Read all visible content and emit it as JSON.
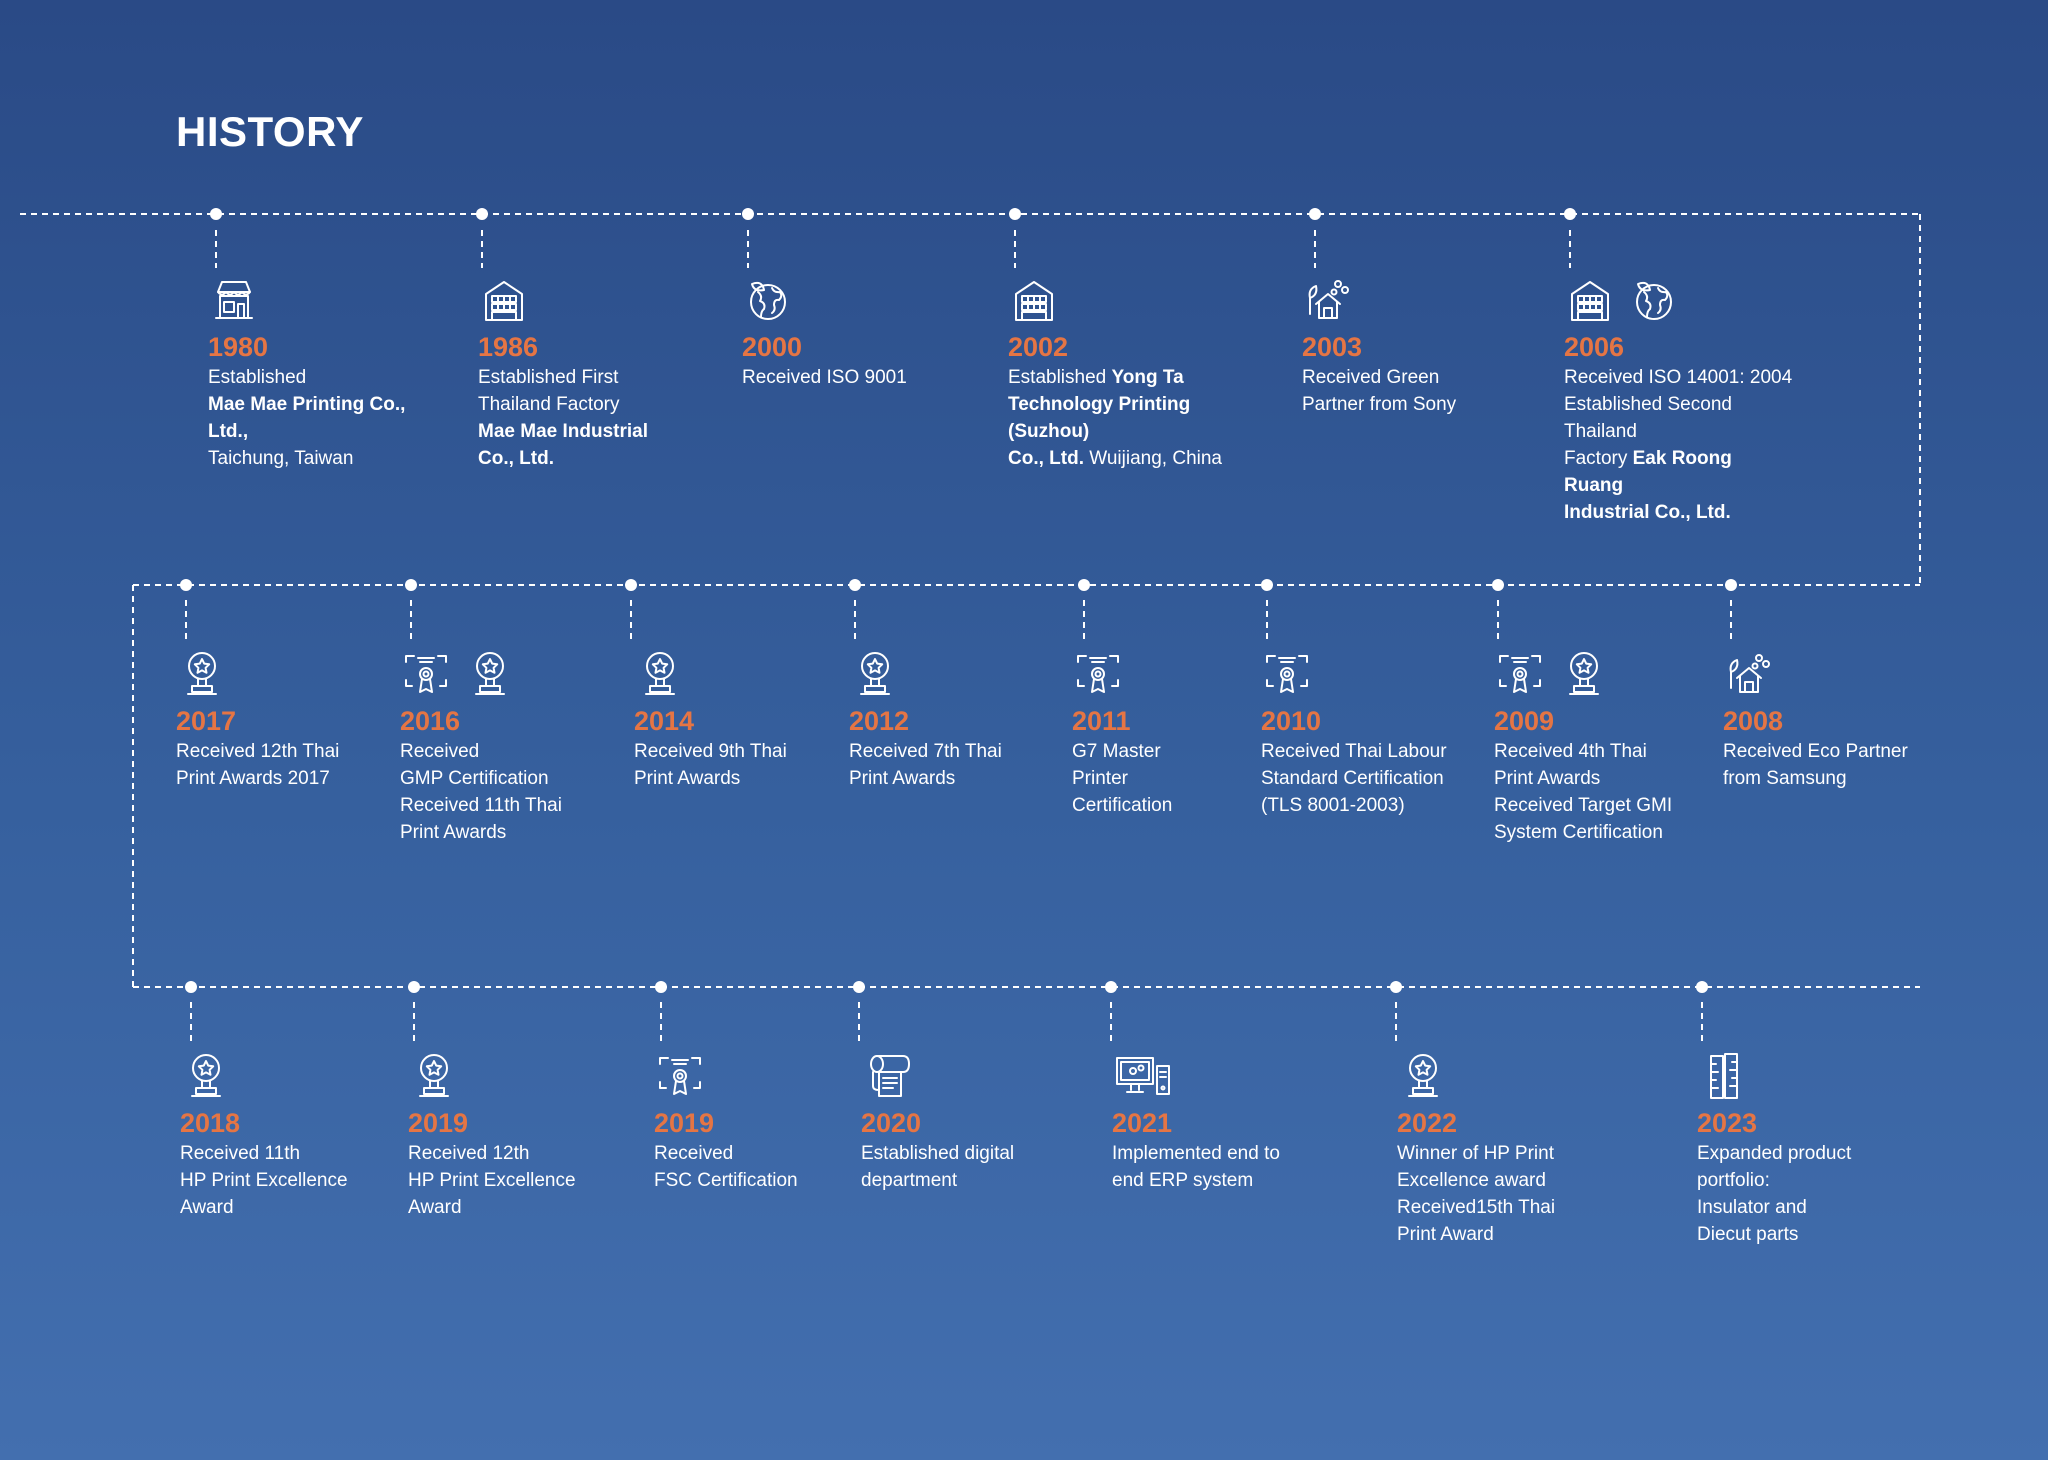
{
  "title": "HISTORY",
  "colors": {
    "year": "#e57544",
    "line": "#ffffff"
  },
  "events": [
    {
      "year": "1980",
      "icons": [
        "store-icon"
      ],
      "lines": [
        [
          {
            "t": "Established"
          }
        ],
        [
          {
            "t": "Mae Mae Printing Co.,",
            "b": true
          }
        ],
        [
          {
            "t": "Ltd.,",
            "b": true
          }
        ],
        [
          {
            "t": "Taichung, Taiwan"
          }
        ]
      ]
    },
    {
      "year": "1986",
      "icons": [
        "factory-icon"
      ],
      "lines": [
        [
          {
            "t": "Established First"
          }
        ],
        [
          {
            "t": "Thailand Factory"
          }
        ],
        [
          {
            "t": "Mae Mae Industrial",
            "b": true
          }
        ],
        [
          {
            "t": "Co., Ltd.",
            "b": true
          }
        ]
      ]
    },
    {
      "year": "2000",
      "icons": [
        "globe-leaf-icon"
      ],
      "lines": [
        [
          {
            "t": "Received ISO 9001"
          }
        ]
      ]
    },
    {
      "year": "2002",
      "icons": [
        "factory-icon"
      ],
      "lines": [
        [
          {
            "t": "Established "
          },
          {
            "t": "Yong Ta",
            "b": true
          }
        ],
        [
          {
            "t": "Technology Printing (Suzhou)",
            "b": true
          }
        ],
        [
          {
            "t": "Co., Ltd.",
            "b": true
          },
          {
            "t": " Wuijiang, China"
          }
        ]
      ]
    },
    {
      "year": "2003",
      "icons": [
        "eco-house-icon"
      ],
      "lines": [
        [
          {
            "t": "Received Green"
          }
        ],
        [
          {
            "t": "Partner from Sony"
          }
        ]
      ]
    },
    {
      "year": "2006",
      "icons": [
        "factory-icon",
        "globe-leaf-icon"
      ],
      "lines": [
        [
          {
            "t": "Received ISO 14001: 2004"
          }
        ],
        [
          {
            "t": "Established Second Thailand"
          }
        ],
        [
          {
            "t": "Factory "
          },
          {
            "t": "Eak Roong Ruang",
            "b": true
          }
        ],
        [
          {
            "t": "Industrial Co., Ltd.",
            "b": true
          }
        ]
      ]
    },
    {
      "year": "2017",
      "icons": [
        "award-trophy-icon"
      ],
      "lines": [
        [
          {
            "t": "Received 12th Thai"
          }
        ],
        [
          {
            "t": "Print Awards 2017"
          }
        ]
      ]
    },
    {
      "year": "2016",
      "icons": [
        "certificate-icon",
        "award-trophy-icon"
      ],
      "lines": [
        [
          {
            "t": "Received"
          }
        ],
        [
          {
            "t": "GMP Certification"
          }
        ],
        [
          {
            "t": "Received 11th Thai"
          }
        ],
        [
          {
            "t": "Print Awards"
          }
        ]
      ]
    },
    {
      "year": "2014",
      "icons": [
        "award-trophy-icon"
      ],
      "lines": [
        [
          {
            "t": "Received 9th Thai"
          }
        ],
        [
          {
            "t": "Print Awards"
          }
        ]
      ]
    },
    {
      "year": "2012",
      "icons": [
        "award-trophy-icon"
      ],
      "lines": [
        [
          {
            "t": "Received 7th Thai"
          }
        ],
        [
          {
            "t": "Print Awards"
          }
        ]
      ]
    },
    {
      "year": "2011",
      "icons": [
        "certificate-icon"
      ],
      "lines": [
        [
          {
            "t": "G7 Master"
          }
        ],
        [
          {
            "t": "Printer"
          }
        ],
        [
          {
            "t": "Certification"
          }
        ]
      ]
    },
    {
      "year": "2010",
      "icons": [
        "certificate-icon"
      ],
      "lines": [
        [
          {
            "t": "Received Thai Labour"
          }
        ],
        [
          {
            "t": "Standard Certification"
          }
        ],
        [
          {
            "t": "(TLS 8001-2003)"
          }
        ]
      ]
    },
    {
      "year": "2009",
      "icons": [
        "certificate-icon",
        "award-trophy-icon"
      ],
      "lines": [
        [
          {
            "t": "Received 4th Thai"
          }
        ],
        [
          {
            "t": "Print Awards"
          }
        ],
        [
          {
            "t": "Received Target GMI"
          }
        ],
        [
          {
            "t": "System Certification"
          }
        ]
      ]
    },
    {
      "year": "2008",
      "icons": [
        "eco-house-icon"
      ],
      "lines": [
        [
          {
            "t": "Received Eco Partner"
          }
        ],
        [
          {
            "t": "from Samsung"
          }
        ]
      ]
    },
    {
      "year": "2018",
      "icons": [
        "award-trophy-icon"
      ],
      "lines": [
        [
          {
            "t": "Received 11th"
          }
        ],
        [
          {
            "t": "HP Print Excellence"
          }
        ],
        [
          {
            "t": "Award"
          }
        ]
      ]
    },
    {
      "year": "2019",
      "icons": [
        "award-trophy-icon"
      ],
      "lines": [
        [
          {
            "t": "Received 12th"
          }
        ],
        [
          {
            "t": "HP Print Excellence"
          }
        ],
        [
          {
            "t": "Award"
          }
        ]
      ]
    },
    {
      "year": "2019",
      "icons": [
        "certificate-icon"
      ],
      "lines": [
        [
          {
            "t": "Received"
          }
        ],
        [
          {
            "t": "FSC Certification"
          }
        ]
      ]
    },
    {
      "year": "2020",
      "icons": [
        "paper-roll-icon"
      ],
      "lines": [
        [
          {
            "t": "Established digital"
          }
        ],
        [
          {
            "t": "department"
          }
        ]
      ]
    },
    {
      "year": "2021",
      "icons": [
        "computer-icon"
      ],
      "lines": [
        [
          {
            "t": "Implemented end to"
          }
        ],
        [
          {
            "t": "end ERP system"
          }
        ]
      ]
    },
    {
      "year": "2022",
      "icons": [
        "award-trophy-icon"
      ],
      "lines": [
        [
          {
            "t": "Winner of HP Print"
          }
        ],
        [
          {
            "t": "Excellence award"
          }
        ],
        [
          {
            "t": "Received15th Thai"
          }
        ],
        [
          {
            "t": "Print Award"
          }
        ]
      ]
    },
    {
      "year": "2023",
      "icons": [
        "ruler-parts-icon"
      ],
      "lines": [
        [
          {
            "t": "Expanded product"
          }
        ],
        [
          {
            "t": "portfolio:"
          }
        ],
        [
          {
            "t": "Insulator and"
          }
        ],
        [
          {
            "t": "Diecut parts"
          }
        ]
      ]
    }
  ]
}
